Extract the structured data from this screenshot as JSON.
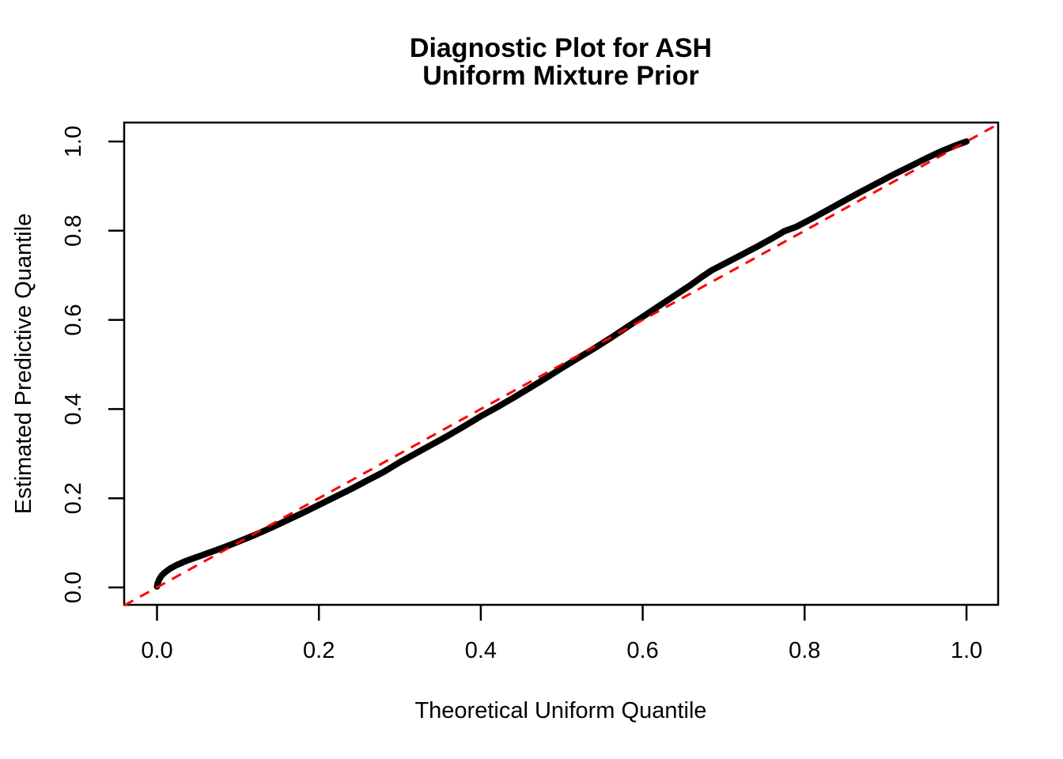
{
  "title": {
    "line1": "Diagnostic Plot for ASH",
    "line2": "Uniform Mixture Prior"
  },
  "colors": {
    "curve": "#000000",
    "reference_line": "#FF0000",
    "axis": "#000000",
    "background": "#FFFFFF"
  },
  "chart_data": {
    "type": "line",
    "title": "Diagnostic Plot for ASH\nUniform Mixture Prior",
    "xlabel": "Theoretical Uniform Quantile",
    "ylabel": "Estimated Predictive Quantile",
    "xlim": [
      0.0,
      1.0
    ],
    "ylim": [
      0.0,
      1.0
    ],
    "grid": false,
    "legend_position": "none",
    "x_tick_labels": [
      "0.0",
      "0.2",
      "0.4",
      "0.6",
      "0.8",
      "1.0"
    ],
    "y_tick_labels": [
      "0.0",
      "0.2",
      "0.4",
      "0.6",
      "0.8",
      "1.0"
    ],
    "x_ticks": [
      0.0,
      0.2,
      0.4,
      0.6,
      0.8,
      1.0
    ],
    "y_ticks": [
      0.0,
      0.2,
      0.4,
      0.6,
      0.8,
      1.0
    ],
    "series": [
      {
        "name": "qq-curve",
        "label": "Estimated predictive quantile vs theoretical uniform quantile",
        "color": "#000000",
        "style": "solid",
        "line_width": 8,
        "points": [
          [
            0.0,
            0.002
          ],
          [
            0.001,
            0.01
          ],
          [
            0.003,
            0.019
          ],
          [
            0.006,
            0.027
          ],
          [
            0.01,
            0.034
          ],
          [
            0.016,
            0.042
          ],
          [
            0.024,
            0.05
          ],
          [
            0.034,
            0.058
          ],
          [
            0.046,
            0.066
          ],
          [
            0.06,
            0.075
          ],
          [
            0.075,
            0.085
          ],
          [
            0.09,
            0.095
          ],
          [
            0.105,
            0.106
          ],
          [
            0.12,
            0.117
          ],
          [
            0.14,
            0.133
          ],
          [
            0.16,
            0.15
          ],
          [
            0.18,
            0.167
          ],
          [
            0.2,
            0.185
          ],
          [
            0.22,
            0.203
          ],
          [
            0.24,
            0.221
          ],
          [
            0.26,
            0.24
          ],
          [
            0.28,
            0.259
          ],
          [
            0.3,
            0.281
          ],
          [
            0.32,
            0.301
          ],
          [
            0.34,
            0.321
          ],
          [
            0.36,
            0.341
          ],
          [
            0.38,
            0.362
          ],
          [
            0.4,
            0.384
          ],
          [
            0.42,
            0.404
          ],
          [
            0.44,
            0.425
          ],
          [
            0.46,
            0.447
          ],
          [
            0.48,
            0.469
          ],
          [
            0.5,
            0.492
          ],
          [
            0.52,
            0.514
          ],
          [
            0.54,
            0.536
          ],
          [
            0.56,
            0.559
          ],
          [
            0.58,
            0.583
          ],
          [
            0.6,
            0.607
          ],
          [
            0.62,
            0.631
          ],
          [
            0.64,
            0.655
          ],
          [
            0.66,
            0.679
          ],
          [
            0.672,
            0.695
          ],
          [
            0.685,
            0.711
          ],
          [
            0.7,
            0.725
          ],
          [
            0.72,
            0.744
          ],
          [
            0.74,
            0.763
          ],
          [
            0.76,
            0.783
          ],
          [
            0.775,
            0.799
          ],
          [
            0.79,
            0.809
          ],
          [
            0.81,
            0.828
          ],
          [
            0.83,
            0.848
          ],
          [
            0.85,
            0.868
          ],
          [
            0.87,
            0.888
          ],
          [
            0.89,
            0.907
          ],
          [
            0.91,
            0.926
          ],
          [
            0.93,
            0.944
          ],
          [
            0.95,
            0.962
          ],
          [
            0.97,
            0.979
          ],
          [
            0.985,
            0.99
          ],
          [
            0.995,
            0.997
          ],
          [
            1.0,
            1.0
          ]
        ]
      },
      {
        "name": "reference-line",
        "label": "y = x reference (abline 0,1)",
        "color": "#FF0000",
        "style": "dashed",
        "line_width": 3,
        "points": [
          [
            -0.0405,
            -0.0405
          ],
          [
            1.0405,
            1.0405
          ]
        ]
      }
    ]
  }
}
